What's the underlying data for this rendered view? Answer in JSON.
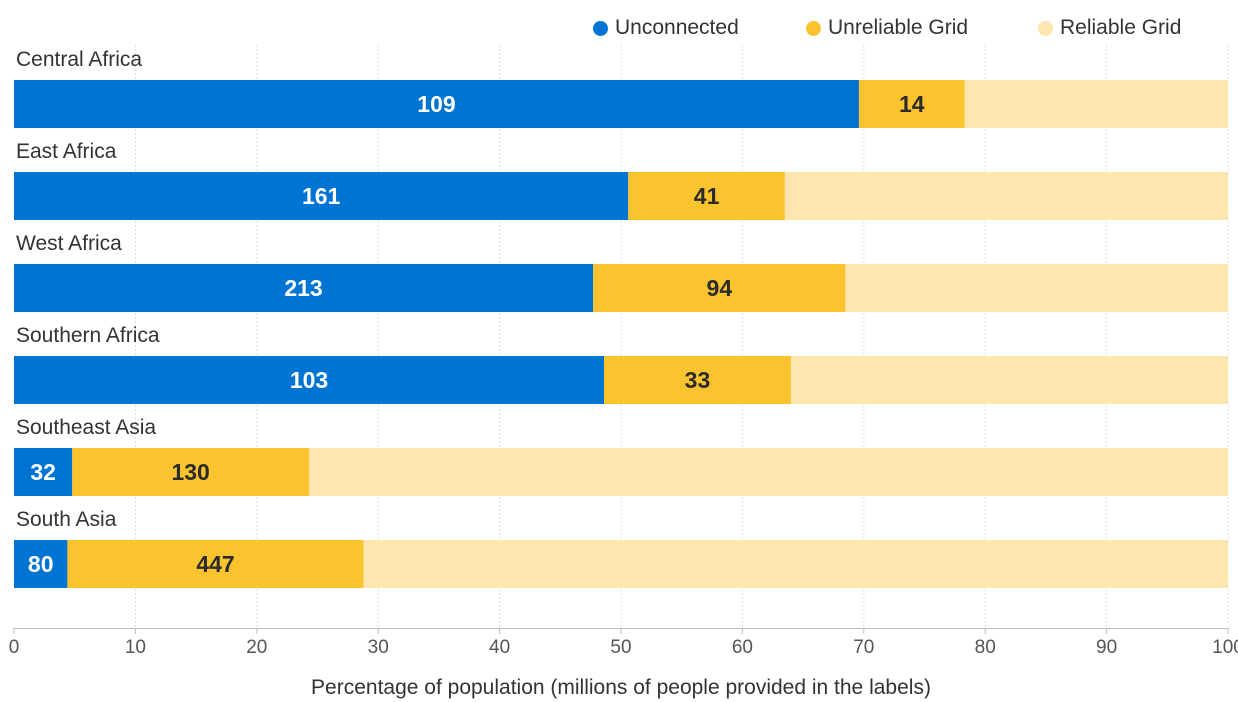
{
  "chart_data": {
    "type": "bar",
    "orientation": "horizontal",
    "stacked": true,
    "categories": [
      "Central Africa",
      "East Africa",
      "West Africa",
      "Southern Africa",
      "Southeast Asia",
      "South Asia"
    ],
    "series": [
      {
        "name": "Unconnected",
        "color": "#0074d2",
        "values": [
          69.6,
          50.6,
          47.7,
          48.6,
          4.8,
          4.4
        ],
        "labels": [
          "109",
          "161",
          "213",
          "103",
          "32",
          "80"
        ]
      },
      {
        "name": "Unreliable Grid",
        "color": "#fbc42f",
        "values": [
          8.7,
          12.9,
          20.8,
          15.4,
          19.5,
          24.4
        ],
        "labels": [
          "14",
          "41",
          "94",
          "33",
          "130",
          "447"
        ]
      },
      {
        "name": "Reliable Grid",
        "color": "#fde6b0",
        "values": [
          21.7,
          36.5,
          31.5,
          36.0,
          75.7,
          71.2
        ],
        "labels": [
          "",
          "",
          "",
          "",
          "",
          ""
        ]
      }
    ],
    "xlabel": "Percentage of population (millions of people provided in the labels)",
    "xlim": [
      0,
      100
    ],
    "xticks": [
      "0",
      "10",
      "20",
      "30",
      "40",
      "50",
      "60",
      "70",
      "80",
      "90",
      "100"
    ],
    "grid": true,
    "legend_position": "top-right"
  }
}
